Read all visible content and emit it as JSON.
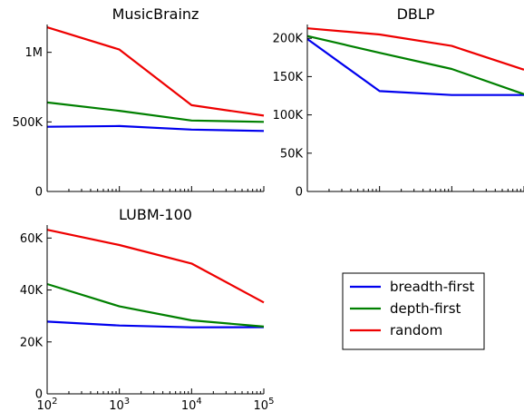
{
  "chart_data": [
    {
      "type": "line",
      "title": "MusicBrainz",
      "x": [
        100,
        1000,
        10000,
        100000
      ],
      "xscale": "log",
      "xlim": [
        100,
        100000
      ],
      "ylim": [
        0,
        1200000
      ],
      "y_ticks": [
        0,
        500000,
        1000000
      ],
      "y_tick_labels": [
        "0",
        "500K",
        "1M"
      ],
      "x_tick_labels": [],
      "series": [
        {
          "name": "breadth-first",
          "color": "#0000ee",
          "values": [
            465000,
            470000,
            445000,
            435000
          ]
        },
        {
          "name": "depth-first",
          "color": "#008000",
          "values": [
            640000,
            580000,
            510000,
            500000
          ]
        },
        {
          "name": "random",
          "color": "#ee0000",
          "values": [
            1180000,
            1020000,
            620000,
            545000
          ]
        }
      ]
    },
    {
      "type": "line",
      "title": "DBLP",
      "x": [
        100,
        1000,
        10000,
        100000
      ],
      "xscale": "log",
      "xlim": [
        100,
        100000
      ],
      "ylim": [
        0,
        218000
      ],
      "y_ticks": [
        0,
        50000,
        100000,
        150000,
        200000
      ],
      "y_tick_labels": [
        "0",
        "50K",
        "100K",
        "150K",
        "200K"
      ],
      "x_tick_labels": [],
      "series": [
        {
          "name": "breadth-first",
          "color": "#0000ee",
          "values": [
            199000,
            131000,
            126000,
            126000
          ]
        },
        {
          "name": "depth-first",
          "color": "#008000",
          "values": [
            203000,
            181000,
            160000,
            127000
          ]
        },
        {
          "name": "random",
          "color": "#ee0000",
          "values": [
            213000,
            205000,
            190000,
            159000
          ]
        }
      ]
    },
    {
      "type": "line",
      "title": "LUBM-100",
      "x": [
        100,
        1000,
        10000,
        100000
      ],
      "xscale": "log",
      "xlim": [
        100,
        100000
      ],
      "ylim": [
        0,
        65000
      ],
      "y_ticks": [
        0,
        20000,
        40000,
        60000
      ],
      "y_tick_labels": [
        "0",
        "20K",
        "40K",
        "60K"
      ],
      "x_tick_labels": [
        "10^2",
        "10^3",
        "10^4",
        "10^5"
      ],
      "series": [
        {
          "name": "breadth-first",
          "color": "#0000ee",
          "values": [
            27800,
            26300,
            25600,
            25700
          ]
        },
        {
          "name": "depth-first",
          "color": "#008000",
          "values": [
            42300,
            33700,
            28300,
            25900
          ]
        },
        {
          "name": "random",
          "color": "#ee0000",
          "values": [
            63200,
            57300,
            50200,
            35200
          ]
        }
      ]
    }
  ],
  "legend": {
    "entries": [
      {
        "label": "breadth-first",
        "color": "#0000ee"
      },
      {
        "label": "depth-first",
        "color": "#008000"
      },
      {
        "label": "random",
        "color": "#ee0000"
      }
    ]
  }
}
